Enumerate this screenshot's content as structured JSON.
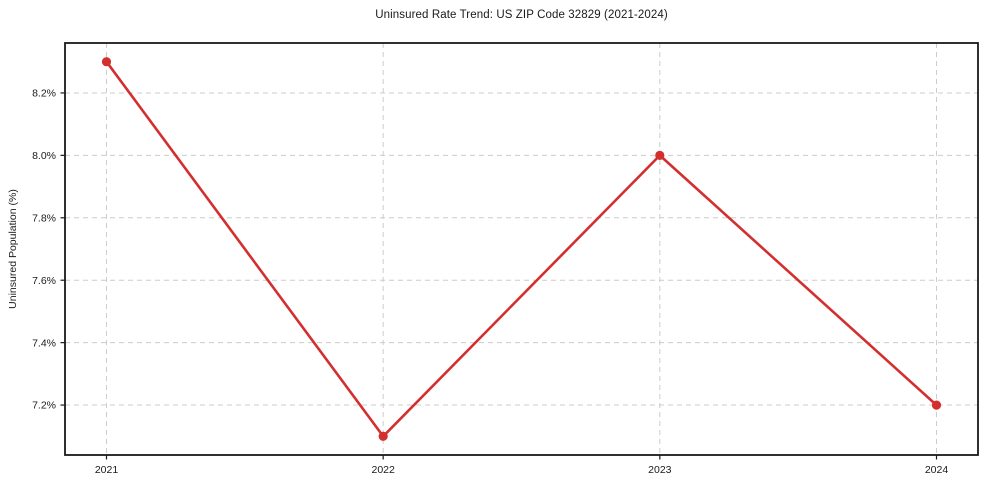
{
  "chart_data": {
    "type": "line",
    "title": "Uninsured Rate Trend: US ZIP Code 32829 (2021-2024)",
    "xlabel": "",
    "ylabel": "Uninsured Population (%)",
    "x": [
      "2021",
      "2022",
      "2023",
      "2024"
    ],
    "values": [
      8.3,
      7.1,
      8.0,
      7.2
    ],
    "ytick_values": [
      7.2,
      7.4,
      7.6,
      7.8,
      8.0,
      8.2
    ],
    "ytick_labels": [
      "7.2%",
      "7.4%",
      "7.6%",
      "7.8%",
      "8.0%",
      "8.2%"
    ],
    "xlim": [
      2020.85,
      2024.15
    ],
    "ylim": [
      7.04,
      8.36
    ],
    "x_numeric": [
      2021,
      2022,
      2023,
      2024
    ],
    "grid": "on",
    "grid_style": "dashed",
    "legend_position": "none",
    "marker": "circle",
    "line_color": "#d32f2f",
    "grid_color": "#cccccc",
    "axis_color": "#1a1a1a",
    "background_color": "#ffffff"
  }
}
